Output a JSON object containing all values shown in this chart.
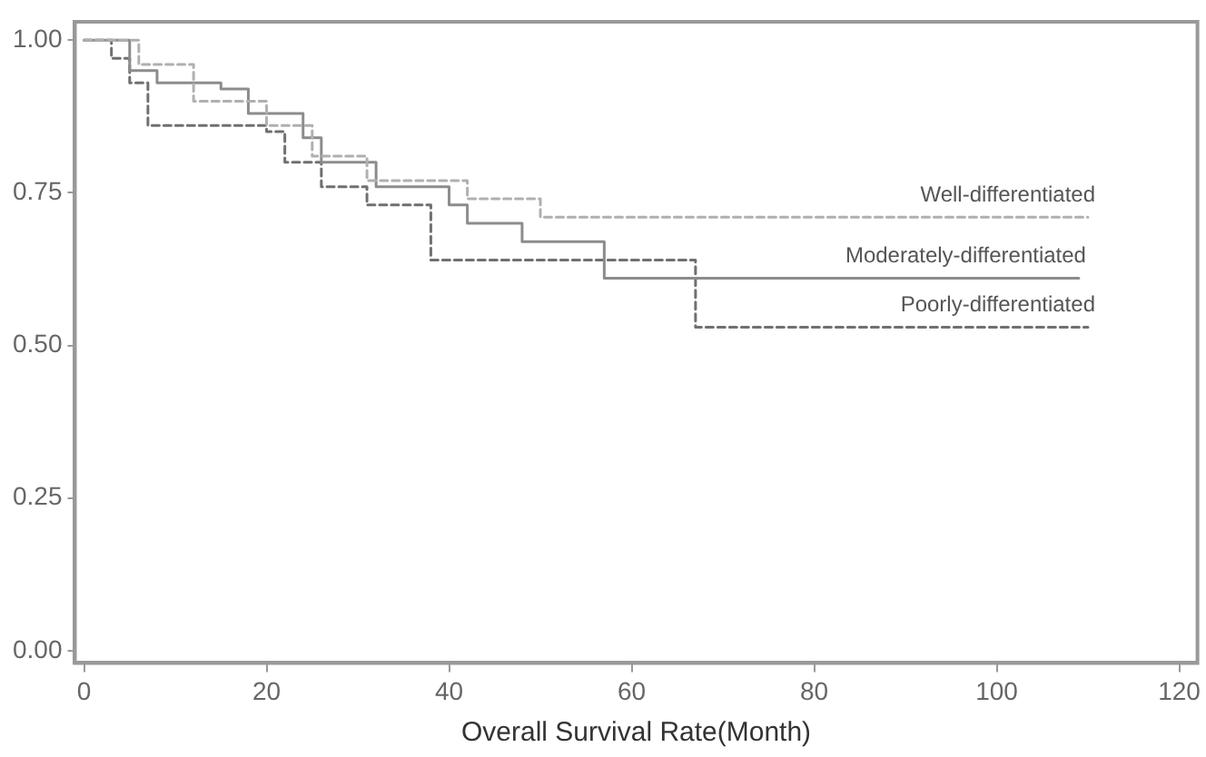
{
  "chart_data": {
    "type": "step",
    "xlabel": "Overall Survival Rate(Month)",
    "xlim": [
      -1,
      122
    ],
    "xticks": [
      0,
      20,
      40,
      60,
      80,
      100,
      120
    ],
    "ylim": [
      -0.02,
      1.03
    ],
    "yticks": [
      {
        "value": 0,
        "label": "0.00"
      },
      {
        "value": 0.25,
        "label": "0.25"
      },
      {
        "value": 0.5,
        "label": "0.50"
      },
      {
        "value": 0.75,
        "label": "0.75"
      },
      {
        "value": 1,
        "label": "1.00"
      }
    ],
    "grid": false,
    "legend": false,
    "marker": "none",
    "series": [
      {
        "name": "Well-differentiated",
        "color": "#b0b0b0",
        "line_style": "dashed",
        "x": [
          0,
          6,
          12,
          20,
          25,
          31,
          42,
          50,
          110
        ],
        "values": [
          1,
          0.96,
          0.9,
          0.86,
          0.81,
          0.77,
          0.74,
          0.71,
          0.71
        ]
      },
      {
        "name": "Moderately-differentiated",
        "color": "#8c8c8c",
        "line_style": "solid",
        "x": [
          0,
          5,
          8,
          15,
          18,
          24,
          26,
          32,
          40,
          42,
          48,
          57,
          109
        ],
        "values": [
          1,
          0.95,
          0.93,
          0.92,
          0.88,
          0.84,
          0.8,
          0.76,
          0.73,
          0.7,
          0.67,
          0.61,
          0.61
        ]
      },
      {
        "name": "Poorly-differentiated",
        "color": "#707070",
        "line_style": "dashed",
        "x": [
          0,
          3,
          5,
          7,
          20,
          22,
          26,
          31,
          38,
          67,
          110
        ],
        "values": [
          1,
          0.97,
          0.93,
          0.86,
          0.85,
          0.8,
          0.76,
          0.73,
          0.64,
          0.53,
          0.53
        ]
      }
    ]
  }
}
